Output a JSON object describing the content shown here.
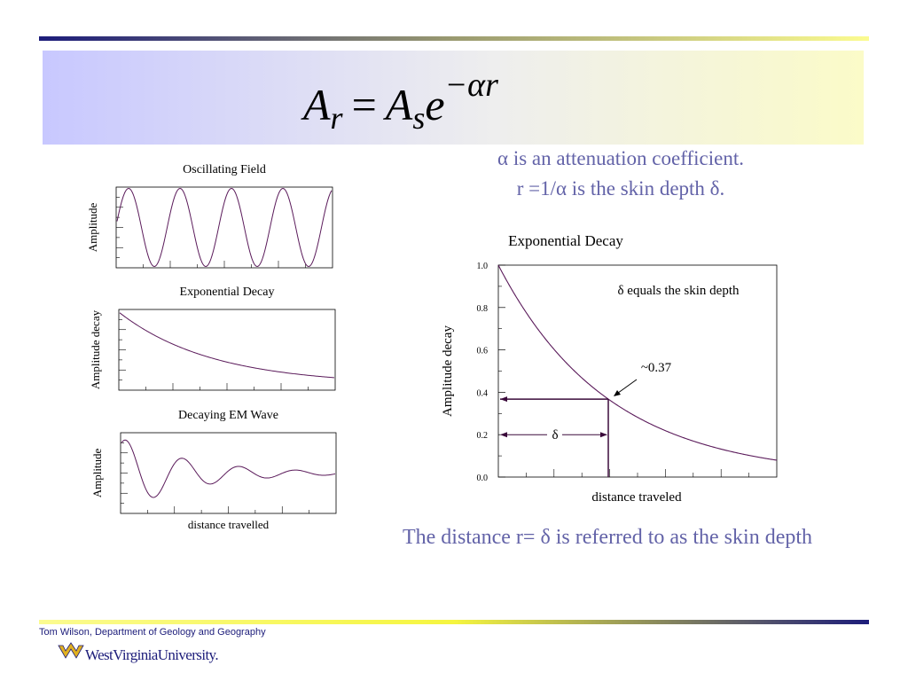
{
  "formula": {
    "lhs_base": "A",
    "lhs_sub": "r",
    "eq": "=",
    "rhs_base": "A",
    "rhs_sub": "s",
    "e": "e",
    "exp": "−αr"
  },
  "notes": [
    "α is an attenuation coefficient.",
    "r =1/α is the skin depth δ."
  ],
  "small_charts": [
    {
      "title": "Oscillating Field",
      "ylabel": "Amplitude"
    },
    {
      "title": "Exponential Decay",
      "ylabel": "Amplitude decay"
    },
    {
      "title": "Decaying EM Wave",
      "ylabel": "Amplitude",
      "xlabel": "distance travelled"
    }
  ],
  "decay_chart": {
    "title": "Exponential Decay",
    "xlabel": "distance traveled",
    "ylabel": "Amplitude decay",
    "ylim": [
      0,
      1
    ],
    "yticks": [
      {
        "value": 0,
        "label": "0.0"
      },
      {
        "value": 0.2,
        "label": "0.2"
      },
      {
        "value": 0.4,
        "label": "0.4"
      },
      {
        "value": 0.6,
        "label": "0.6"
      },
      {
        "value": 0.8,
        "label": "0.8"
      },
      {
        "value": 1,
        "label": "1.0"
      }
    ],
    "annotations": [
      "δ equals the skin depth",
      "~0.37",
      "δ"
    ]
  },
  "caption": "The distance r= δ is referred to as the skin depth",
  "footer": {
    "author": "Tom Wilson, Department of Geology and Geography",
    "logo": "WestVirginiaUniversity."
  }
}
